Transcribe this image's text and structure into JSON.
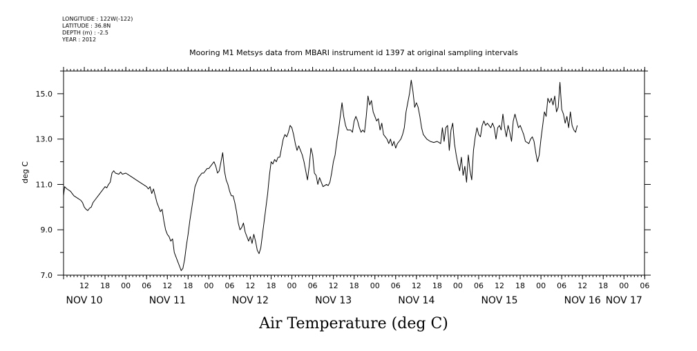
{
  "header": {
    "longitude": "LONGITUDE : 122W(-122)",
    "latitude": "LATITUDE : 36.8N",
    "depth": "DEPTH (m) : -2.5",
    "year": "YEAR : 2012"
  },
  "chart_data": {
    "type": "line",
    "title": "Mooring M1 Metsys data from MBARI instrument id 1397 at original sampling intervals",
    "xlabel": "",
    "ylabel": "deg C",
    "footer": "Air Temperature (deg C)",
    "x_unit": "hours since 2012-11-10 00:00",
    "xlim": [
      6,
      174
    ],
    "ylim": [
      7.0,
      16.0
    ],
    "y_ticks": [
      7.0,
      9.0,
      11.0,
      13.0,
      15.0
    ],
    "y_tick_labels": [
      "7.0",
      "9.0",
      "11.0",
      "13.0",
      "15.0"
    ],
    "hour_tick_positions": [
      12,
      18,
      24,
      30,
      36,
      42,
      48,
      54,
      60,
      66,
      72,
      78,
      84,
      90,
      96,
      102,
      108,
      114,
      120,
      126,
      132,
      138,
      144,
      150,
      156,
      162,
      168,
      174
    ],
    "hour_tick_labels": [
      "12",
      "18",
      "00",
      "06",
      "12",
      "18",
      "00",
      "06",
      "12",
      "18",
      "00",
      "06",
      "12",
      "18",
      "00",
      "06",
      "12",
      "18",
      "00",
      "06",
      "12",
      "18",
      "00",
      "06",
      "12",
      "18",
      "00",
      "06"
    ],
    "day_labels": [
      {
        "x": 12,
        "label": "NOV 10"
      },
      {
        "x": 36,
        "label": "NOV 11"
      },
      {
        "x": 60,
        "label": "NOV 12"
      },
      {
        "x": 84,
        "label": "NOV 13"
      },
      {
        "x": 108,
        "label": "NOV 14"
      },
      {
        "x": 132,
        "label": "NOV 15"
      },
      {
        "x": 156,
        "label": "NOV 16"
      },
      {
        "x": 168,
        "label": "NOV 17"
      }
    ],
    "grid": false,
    "series": [
      {
        "color": "#000000",
        "points": [
          [
            6.0,
            10.5
          ],
          [
            6.3,
            10.9
          ],
          [
            7.0,
            10.8
          ],
          [
            8.0,
            10.7
          ],
          [
            9.0,
            10.5
          ],
          [
            10.0,
            10.4
          ],
          [
            11.0,
            10.3
          ],
          [
            11.5,
            10.2
          ],
          [
            12.0,
            10.0
          ],
          [
            12.5,
            9.9
          ],
          [
            13.0,
            9.85
          ],
          [
            13.5,
            9.95
          ],
          [
            14.0,
            10.0
          ],
          [
            14.5,
            10.2
          ],
          [
            15.0,
            10.3
          ],
          [
            16.0,
            10.5
          ],
          [
            17.0,
            10.7
          ],
          [
            18.0,
            10.9
          ],
          [
            18.5,
            10.85
          ],
          [
            19.0,
            11.0
          ],
          [
            19.5,
            11.1
          ],
          [
            20.0,
            11.5
          ],
          [
            20.5,
            11.6
          ],
          [
            21.0,
            11.5
          ],
          [
            22.0,
            11.45
          ],
          [
            22.5,
            11.55
          ],
          [
            23.0,
            11.45
          ],
          [
            24.0,
            11.5
          ],
          [
            25.0,
            11.4
          ],
          [
            26.0,
            11.3
          ],
          [
            27.0,
            11.2
          ],
          [
            28.0,
            11.1
          ],
          [
            29.0,
            11.0
          ],
          [
            30.0,
            10.9
          ],
          [
            30.5,
            10.8
          ],
          [
            31.0,
            10.9
          ],
          [
            31.5,
            10.6
          ],
          [
            32.0,
            10.8
          ],
          [
            32.5,
            10.5
          ],
          [
            33.0,
            10.2
          ],
          [
            33.5,
            10.0
          ],
          [
            34.0,
            9.8
          ],
          [
            34.5,
            9.9
          ],
          [
            35.0,
            9.4
          ],
          [
            35.5,
            9.0
          ],
          [
            36.0,
            8.8
          ],
          [
            36.5,
            8.7
          ],
          [
            37.0,
            8.5
          ],
          [
            37.5,
            8.6
          ],
          [
            38.0,
            8.0
          ],
          [
            38.5,
            7.8
          ],
          [
            39.0,
            7.6
          ],
          [
            39.5,
            7.4
          ],
          [
            40.0,
            7.2
          ],
          [
            40.5,
            7.3
          ],
          [
            41.0,
            7.7
          ],
          [
            41.5,
            8.3
          ],
          [
            42.0,
            8.8
          ],
          [
            42.5,
            9.4
          ],
          [
            43.0,
            9.9
          ],
          [
            43.5,
            10.4
          ],
          [
            44.0,
            10.9
          ],
          [
            44.5,
            11.1
          ],
          [
            45.0,
            11.3
          ],
          [
            45.5,
            11.4
          ],
          [
            46.0,
            11.5
          ],
          [
            46.5,
            11.5
          ],
          [
            47.0,
            11.6
          ],
          [
            47.5,
            11.7
          ],
          [
            48.0,
            11.7
          ],
          [
            48.5,
            11.8
          ],
          [
            49.0,
            11.9
          ],
          [
            49.5,
            12.0
          ],
          [
            50.0,
            11.8
          ],
          [
            50.5,
            11.5
          ],
          [
            51.0,
            11.6
          ],
          [
            51.5,
            12.0
          ],
          [
            52.0,
            12.4
          ],
          [
            52.5,
            11.6
          ],
          [
            53.0,
            11.2
          ],
          [
            53.5,
            11.0
          ],
          [
            54.0,
            10.7
          ],
          [
            54.5,
            10.5
          ],
          [
            55.0,
            10.5
          ],
          [
            55.5,
            10.2
          ],
          [
            56.0,
            9.8
          ],
          [
            56.5,
            9.3
          ],
          [
            57.0,
            9.0
          ],
          [
            57.5,
            9.1
          ],
          [
            58.0,
            9.3
          ],
          [
            58.5,
            8.9
          ],
          [
            59.0,
            8.7
          ],
          [
            59.5,
            8.5
          ],
          [
            60.0,
            8.7
          ],
          [
            60.5,
            8.4
          ],
          [
            61.0,
            8.8
          ],
          [
            61.5,
            8.5
          ],
          [
            62.0,
            8.1
          ],
          [
            62.5,
            7.95
          ],
          [
            63.0,
            8.2
          ],
          [
            63.5,
            8.8
          ],
          [
            64.0,
            9.4
          ],
          [
            64.5,
            10.0
          ],
          [
            65.0,
            10.6
          ],
          [
            65.5,
            11.4
          ],
          [
            66.0,
            12.0
          ],
          [
            66.5,
            11.9
          ],
          [
            67.0,
            12.1
          ],
          [
            67.5,
            12.0
          ],
          [
            68.0,
            12.2
          ],
          [
            68.5,
            12.2
          ],
          [
            69.0,
            12.6
          ],
          [
            69.5,
            13.0
          ],
          [
            70.0,
            13.2
          ],
          [
            70.5,
            13.1
          ],
          [
            71.0,
            13.3
          ],
          [
            71.5,
            13.6
          ],
          [
            72.0,
            13.5
          ],
          [
            72.5,
            13.2
          ],
          [
            73.0,
            12.8
          ],
          [
            73.5,
            12.5
          ],
          [
            74.0,
            12.7
          ],
          [
            74.5,
            12.5
          ],
          [
            75.0,
            12.3
          ],
          [
            75.5,
            12.0
          ],
          [
            76.0,
            11.6
          ],
          [
            76.5,
            11.2
          ],
          [
            77.0,
            11.8
          ],
          [
            77.5,
            12.6
          ],
          [
            78.0,
            12.3
          ],
          [
            78.5,
            11.5
          ],
          [
            79.0,
            11.4
          ],
          [
            79.5,
            11.0
          ],
          [
            80.0,
            11.3
          ],
          [
            80.5,
            11.1
          ],
          [
            81.0,
            10.9
          ],
          [
            81.5,
            10.95
          ],
          [
            82.0,
            11.0
          ],
          [
            82.5,
            10.95
          ],
          [
            83.0,
            11.1
          ],
          [
            83.5,
            11.5
          ],
          [
            84.0,
            12.0
          ],
          [
            84.5,
            12.3
          ],
          [
            85.0,
            12.9
          ],
          [
            85.5,
            13.4
          ],
          [
            86.0,
            14.0
          ],
          [
            86.5,
            14.6
          ],
          [
            87.0,
            14.0
          ],
          [
            87.5,
            13.6
          ],
          [
            88.0,
            13.4
          ],
          [
            89.0,
            13.4
          ],
          [
            89.5,
            13.3
          ],
          [
            90.0,
            13.8
          ],
          [
            90.5,
            14.0
          ],
          [
            91.0,
            13.8
          ],
          [
            91.5,
            13.5
          ],
          [
            92.0,
            13.3
          ],
          [
            92.5,
            13.4
          ],
          [
            93.0,
            13.3
          ],
          [
            93.5,
            14.0
          ],
          [
            94.0,
            14.9
          ],
          [
            94.5,
            14.5
          ],
          [
            95.0,
            14.7
          ],
          [
            95.5,
            14.2
          ],
          [
            96.0,
            14.0
          ],
          [
            96.5,
            13.8
          ],
          [
            97.0,
            13.9
          ],
          [
            97.5,
            13.4
          ],
          [
            98.0,
            13.7
          ],
          [
            98.5,
            13.2
          ],
          [
            99.0,
            13.1
          ],
          [
            99.5,
            13.0
          ],
          [
            100.0,
            12.8
          ],
          [
            100.5,
            13.0
          ],
          [
            101.0,
            12.7
          ],
          [
            101.5,
            12.9
          ],
          [
            102.0,
            12.6
          ],
          [
            102.5,
            12.8
          ],
          [
            103.0,
            12.9
          ],
          [
            103.5,
            13.0
          ],
          [
            104.0,
            13.2
          ],
          [
            104.5,
            13.5
          ],
          [
            105.0,
            14.2
          ],
          [
            105.5,
            14.6
          ],
          [
            106.0,
            15.0
          ],
          [
            106.5,
            15.6
          ],
          [
            107.0,
            15.1
          ],
          [
            107.5,
            14.4
          ],
          [
            108.0,
            14.6
          ],
          [
            108.5,
            14.4
          ],
          [
            109.0,
            14.0
          ],
          [
            109.5,
            13.5
          ],
          [
            110.0,
            13.2
          ],
          [
            111.0,
            13.0
          ],
          [
            112.0,
            12.9
          ],
          [
            113.0,
            12.85
          ],
          [
            114.0,
            12.9
          ],
          [
            115.0,
            12.8
          ],
          [
            115.5,
            13.5
          ],
          [
            116.0,
            12.9
          ],
          [
            116.5,
            13.5
          ],
          [
            117.0,
            13.6
          ],
          [
            117.5,
            12.5
          ],
          [
            118.0,
            13.4
          ],
          [
            118.5,
            13.7
          ],
          [
            119.0,
            12.8
          ],
          [
            119.5,
            12.3
          ],
          [
            120.0,
            11.9
          ],
          [
            120.5,
            11.6
          ],
          [
            121.0,
            12.2
          ],
          [
            121.5,
            11.4
          ],
          [
            122.0,
            11.8
          ],
          [
            122.5,
            11.1
          ],
          [
            123.0,
            12.3
          ],
          [
            123.5,
            11.6
          ],
          [
            124.0,
            11.2
          ],
          [
            124.5,
            12.5
          ],
          [
            125.0,
            13.1
          ],
          [
            125.5,
            13.5
          ],
          [
            126.0,
            13.2
          ],
          [
            126.5,
            13.1
          ],
          [
            127.0,
            13.6
          ],
          [
            127.5,
            13.8
          ],
          [
            128.0,
            13.6
          ],
          [
            128.5,
            13.7
          ],
          [
            129.0,
            13.6
          ],
          [
            129.5,
            13.5
          ],
          [
            130.0,
            13.7
          ],
          [
            130.5,
            13.5
          ],
          [
            131.0,
            13.0
          ],
          [
            131.5,
            13.5
          ],
          [
            132.0,
            13.6
          ],
          [
            132.5,
            13.4
          ],
          [
            133.0,
            14.1
          ],
          [
            133.5,
            13.5
          ],
          [
            134.0,
            13.1
          ],
          [
            134.5,
            13.6
          ],
          [
            135.0,
            13.3
          ],
          [
            135.5,
            12.9
          ],
          [
            136.0,
            13.8
          ],
          [
            136.5,
            14.1
          ],
          [
            137.0,
            13.8
          ],
          [
            137.5,
            13.5
          ],
          [
            138.0,
            13.6
          ],
          [
            138.5,
            13.4
          ],
          [
            139.0,
            13.2
          ],
          [
            139.5,
            12.9
          ],
          [
            140.0,
            12.85
          ],
          [
            140.5,
            12.8
          ],
          [
            141.0,
            13.0
          ],
          [
            141.5,
            13.1
          ],
          [
            142.0,
            12.9
          ],
          [
            142.5,
            12.4
          ],
          [
            143.0,
            12.0
          ],
          [
            143.5,
            12.3
          ],
          [
            144.0,
            13.0
          ],
          [
            144.5,
            13.6
          ],
          [
            145.0,
            14.2
          ],
          [
            145.5,
            14.0
          ],
          [
            146.0,
            14.8
          ],
          [
            146.5,
            14.6
          ],
          [
            147.0,
            14.8
          ],
          [
            147.5,
            14.5
          ],
          [
            148.0,
            14.9
          ],
          [
            148.5,
            14.2
          ],
          [
            149.0,
            14.4
          ],
          [
            149.5,
            15.5
          ],
          [
            150.0,
            14.3
          ],
          [
            150.5,
            14.1
          ],
          [
            151.0,
            13.7
          ],
          [
            151.5,
            14.0
          ],
          [
            152.0,
            13.5
          ],
          [
            152.5,
            14.2
          ],
          [
            153.0,
            13.6
          ],
          [
            153.5,
            13.4
          ],
          [
            154.0,
            13.3
          ],
          [
            154.5,
            13.6
          ]
        ]
      }
    ]
  }
}
